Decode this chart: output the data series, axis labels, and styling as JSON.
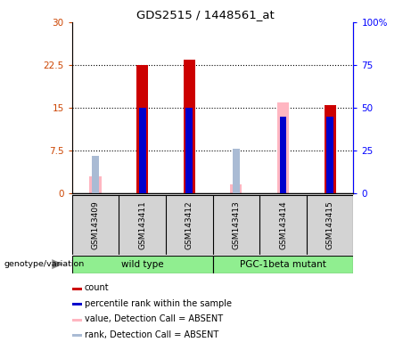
{
  "title": "GDS2515 / 1448561_at",
  "samples": [
    "GSM143409",
    "GSM143411",
    "GSM143412",
    "GSM143413",
    "GSM143414",
    "GSM143415"
  ],
  "count_values": [
    0,
    22.5,
    23.5,
    0,
    0,
    15.5
  ],
  "rank_values_pct": [
    0,
    50,
    50,
    0,
    45,
    45
  ],
  "absent_value_values": [
    3.0,
    0,
    0,
    1.5,
    16.0,
    0
  ],
  "absent_rank_values_pct": [
    22,
    0,
    0,
    26,
    0,
    0
  ],
  "ylim_left": [
    0,
    30
  ],
  "ylim_right": [
    0,
    100
  ],
  "yticks_left": [
    0,
    7.5,
    15,
    22.5,
    30
  ],
  "ytick_labels_left": [
    "0",
    "7.5",
    "15",
    "22.5",
    "30"
  ],
  "yticks_right": [
    0,
    25,
    50,
    75,
    100
  ],
  "ytick_labels_right": [
    "0",
    "25",
    "50",
    "75",
    "100%"
  ],
  "color_count": "#CC0000",
  "color_rank": "#0000CC",
  "color_absent_value": "#FFB6C1",
  "color_absent_rank": "#AABBD4",
  "legend_items": [
    {
      "label": "count",
      "color": "#CC0000"
    },
    {
      "label": "percentile rank within the sample",
      "color": "#0000CC"
    },
    {
      "label": "value, Detection Call = ABSENT",
      "color": "#FFB6C1"
    },
    {
      "label": "rank, Detection Call = ABSENT",
      "color": "#AABBD4"
    }
  ]
}
